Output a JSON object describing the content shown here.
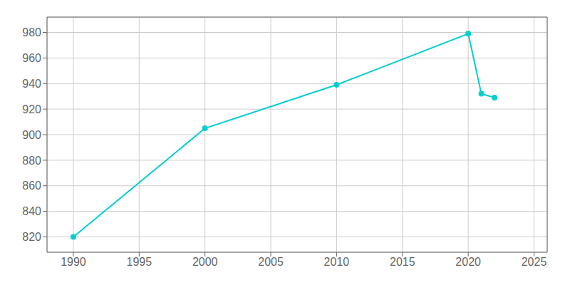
{
  "chart_data": {
    "type": "line",
    "x": [
      1990,
      2000,
      2010,
      2020,
      2021,
      2022
    ],
    "values": [
      820,
      905,
      939,
      979,
      932,
      929
    ],
    "color": "#00CED1",
    "xlim": [
      1988,
      2026
    ],
    "xticks": [
      1990,
      1995,
      2000,
      2005,
      2010,
      2015,
      2020,
      2025
    ],
    "ylim": [
      808,
      992
    ],
    "yticks": [
      820,
      840,
      860,
      880,
      900,
      920,
      940,
      960,
      980
    ],
    "grid": true,
    "marker": "circle"
  }
}
